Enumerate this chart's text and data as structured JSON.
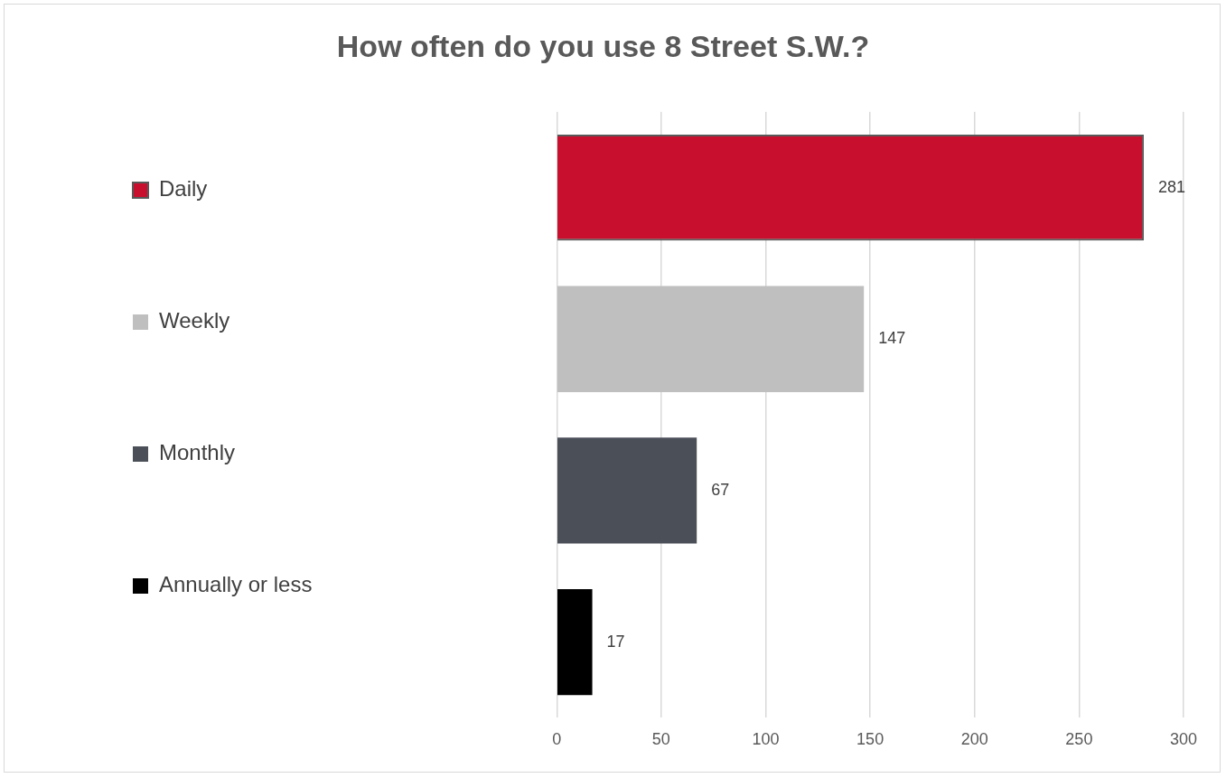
{
  "chart_data": {
    "type": "bar",
    "orientation": "horizontal",
    "title": "How often do you use 8 Street S.W.?",
    "categories": [
      null
    ],
    "series": [
      {
        "name": "Daily",
        "color": "#c8102e",
        "values": [
          281
        ]
      },
      {
        "name": "Weekly",
        "color": "#bfbfbf",
        "values": [
          147
        ]
      },
      {
        "name": "Monthly",
        "color": "#4b4f58",
        "values": [
          67
        ]
      },
      {
        "name": "Annually or less",
        "color": "#000000",
        "values": [
          17
        ]
      }
    ],
    "xlim": [
      0,
      300
    ],
    "xticks": [
      0,
      50,
      100,
      150,
      200,
      250,
      300
    ],
    "grid": "x",
    "legend": "left",
    "data_labels": true
  }
}
